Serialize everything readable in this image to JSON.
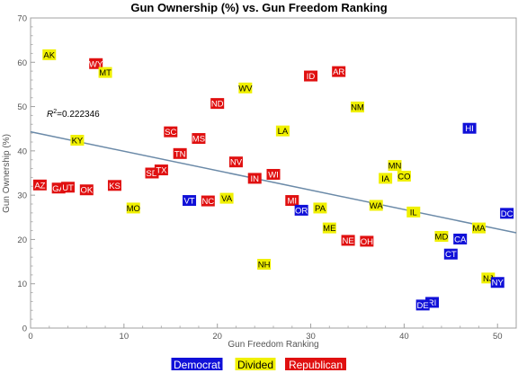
{
  "chart_data": {
    "type": "scatter",
    "title": "Gun Ownership (%) vs. Gun Freedom Ranking",
    "xlabel": "Gun Freedom Ranking",
    "ylabel": "Gun Ownership (%)",
    "xlim": [
      0,
      52
    ],
    "ylim": [
      0,
      70
    ],
    "xticks": [
      0,
      10,
      20,
      30,
      40,
      50
    ],
    "yticks": [
      0,
      10,
      20,
      30,
      40,
      50,
      60,
      70
    ],
    "grid": false,
    "legend_position": "bottom",
    "r2_text": "=0.222346",
    "r2_prefix": "R",
    "r2_sup": "2",
    "trendline": {
      "x": [
        0,
        52
      ],
      "y": [
        44.3,
        21.5
      ],
      "color": "#6b8aa8"
    },
    "groups": [
      {
        "name": "Democrat",
        "color": "#1010d8",
        "text_color": "#ffffff"
      },
      {
        "name": "Divided",
        "color": "#f0f000",
        "text_color": "#000000"
      },
      {
        "name": "Republican",
        "color": "#e01010",
        "text_color": "#ffffff"
      }
    ],
    "points": [
      {
        "label": "AK",
        "x": 2,
        "y": 61.7,
        "group": "Divided"
      },
      {
        "label": "WY",
        "x": 7,
        "y": 59.7,
        "group": "Republican"
      },
      {
        "label": "MT",
        "x": 8,
        "y": 57.7,
        "group": "Divided"
      },
      {
        "label": "ND",
        "x": 20,
        "y": 50.7,
        "group": "Republican"
      },
      {
        "label": "SC",
        "x": 15,
        "y": 44.3,
        "group": "Republican"
      },
      {
        "label": "KY",
        "x": 5,
        "y": 42.4,
        "group": "Divided"
      },
      {
        "label": "MS",
        "x": 18,
        "y": 42.8,
        "group": "Republican"
      },
      {
        "label": "TN",
        "x": 16,
        "y": 39.4,
        "group": "Republican"
      },
      {
        "label": "WV",
        "x": 23,
        "y": 54.2,
        "group": "Divided"
      },
      {
        "label": "ID",
        "x": 30,
        "y": 56.9,
        "group": "Republican"
      },
      {
        "label": "AR",
        "x": 33,
        "y": 57.9,
        "group": "Republican"
      },
      {
        "label": "NM",
        "x": 35,
        "y": 49.9,
        "group": "Divided"
      },
      {
        "label": "LA",
        "x": 27,
        "y": 44.5,
        "group": "Divided"
      },
      {
        "label": "HI",
        "x": 47,
        "y": 45.1,
        "group": "Democrat"
      },
      {
        "label": "AZ",
        "x": 1,
        "y": 32.3,
        "group": "Republican"
      },
      {
        "label": "GA",
        "x": 3,
        "y": 31.6,
        "group": "Republican"
      },
      {
        "label": "UT",
        "x": 4,
        "y": 31.8,
        "group": "Republican"
      },
      {
        "label": "OK",
        "x": 6,
        "y": 31.2,
        "group": "Republican"
      },
      {
        "label": "KS",
        "x": 9,
        "y": 32.2,
        "group": "Republican"
      },
      {
        "label": "SD",
        "x": 13,
        "y": 35.0,
        "group": "Republican"
      },
      {
        "label": "TX",
        "x": 14,
        "y": 35.7,
        "group": "Republican"
      },
      {
        "label": "NV",
        "x": 22,
        "y": 37.5,
        "group": "Republican"
      },
      {
        "label": "IN",
        "x": 24,
        "y": 33.8,
        "group": "Republican"
      },
      {
        "label": "WI",
        "x": 26,
        "y": 34.7,
        "group": "Republican"
      },
      {
        "label": "MN",
        "x": 39,
        "y": 36.7,
        "group": "Divided"
      },
      {
        "label": "IA",
        "x": 38,
        "y": 33.8,
        "group": "Divided"
      },
      {
        "label": "CO",
        "x": 40,
        "y": 34.3,
        "group": "Divided"
      },
      {
        "label": "MO",
        "x": 11,
        "y": 27.1,
        "group": "Divided"
      },
      {
        "label": "VT",
        "x": 17,
        "y": 28.8,
        "group": "Democrat"
      },
      {
        "label": "NC",
        "x": 19,
        "y": 28.7,
        "group": "Republican"
      },
      {
        "label": "VA",
        "x": 21,
        "y": 29.3,
        "group": "Divided"
      },
      {
        "label": "MI",
        "x": 28,
        "y": 28.8,
        "group": "Republican"
      },
      {
        "label": "OR",
        "x": 29,
        "y": 26.6,
        "group": "Democrat"
      },
      {
        "label": "PA",
        "x": 31,
        "y": 27.1,
        "group": "Divided"
      },
      {
        "label": "WA",
        "x": 37,
        "y": 27.7,
        "group": "Divided"
      },
      {
        "label": "IL",
        "x": 41,
        "y": 26.2,
        "group": "Divided"
      },
      {
        "label": "DC",
        "x": 51,
        "y": 25.9,
        "group": "Democrat"
      },
      {
        "label": "ME",
        "x": 32,
        "y": 22.6,
        "group": "Divided"
      },
      {
        "label": "MA",
        "x": 48,
        "y": 22.6,
        "group": "Divided"
      },
      {
        "label": "NE",
        "x": 34,
        "y": 19.8,
        "group": "Republican"
      },
      {
        "label": "OH",
        "x": 36,
        "y": 19.6,
        "group": "Republican"
      },
      {
        "label": "MD",
        "x": 44,
        "y": 20.7,
        "group": "Divided"
      },
      {
        "label": "CA",
        "x": 46,
        "y": 20.1,
        "group": "Democrat"
      },
      {
        "label": "CT",
        "x": 45,
        "y": 16.7,
        "group": "Democrat"
      },
      {
        "label": "NH",
        "x": 25,
        "y": 14.4,
        "group": "Divided"
      },
      {
        "label": "NJ",
        "x": 49,
        "y": 11.3,
        "group": "Divided"
      },
      {
        "label": "NY",
        "x": 50,
        "y": 10.3,
        "group": "Democrat"
      },
      {
        "label": "RI",
        "x": 43,
        "y": 5.8,
        "group": "Democrat"
      },
      {
        "label": "DE",
        "x": 42,
        "y": 5.2,
        "group": "Democrat"
      }
    ]
  }
}
